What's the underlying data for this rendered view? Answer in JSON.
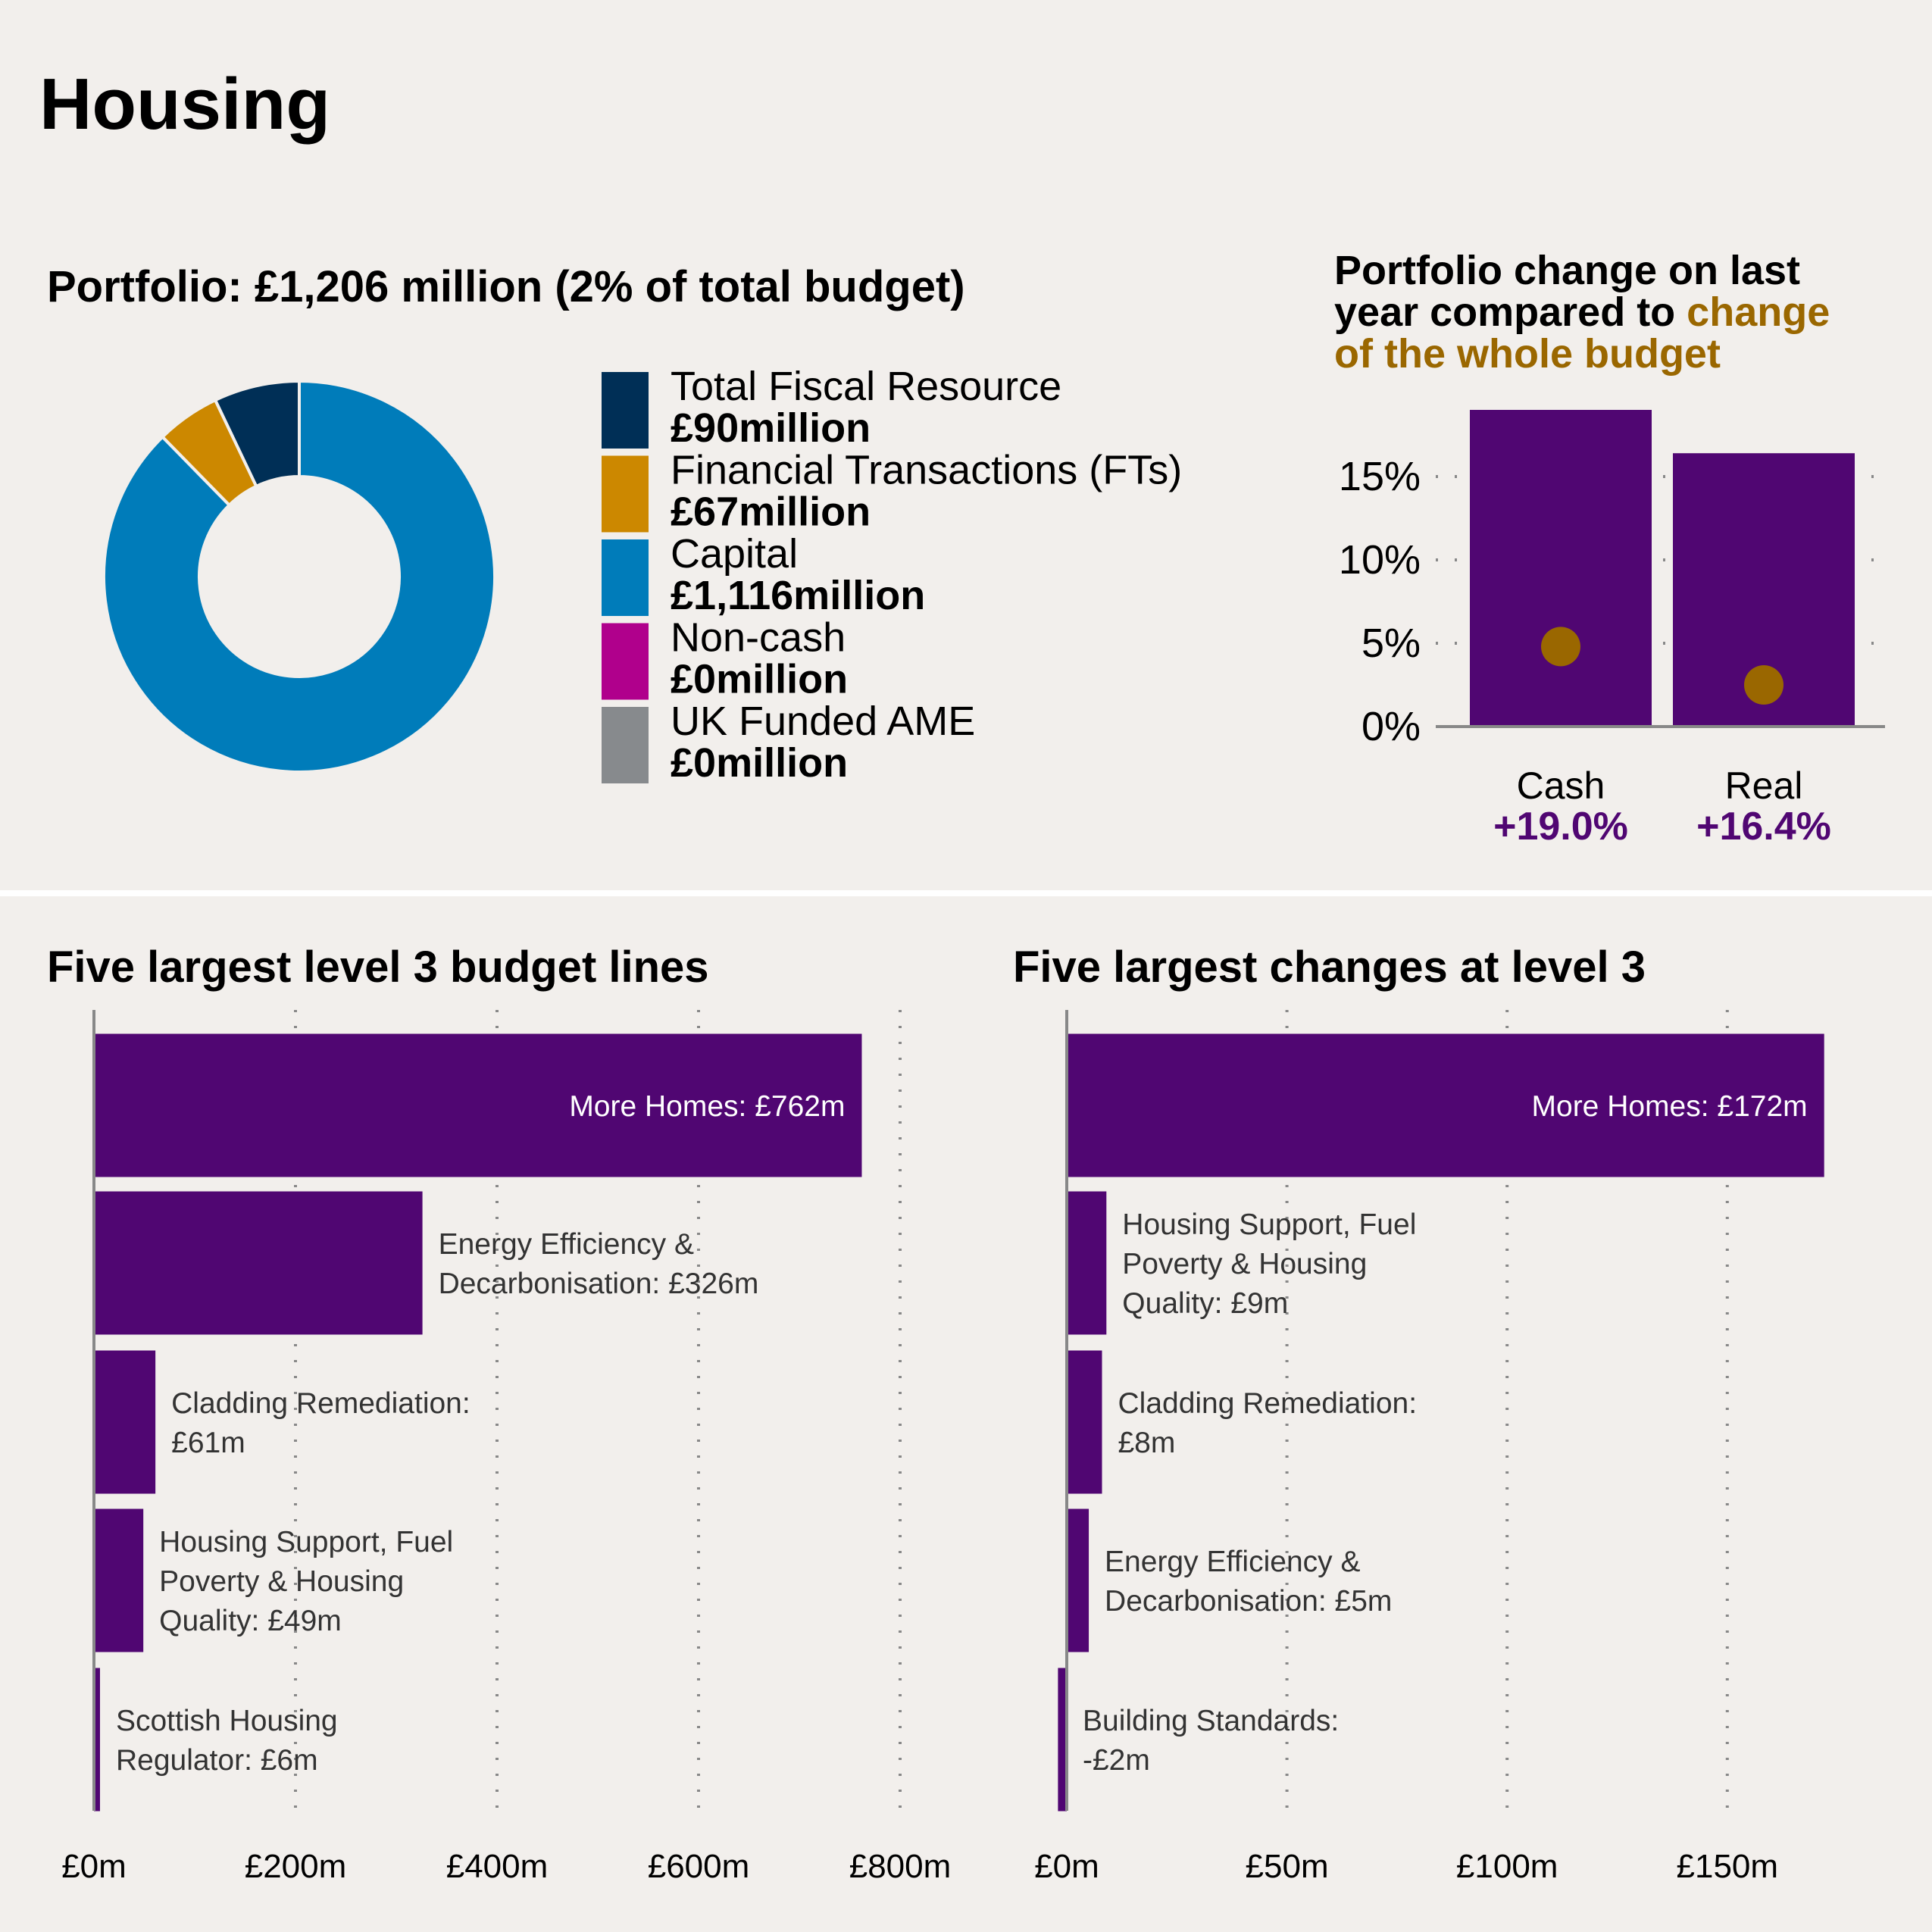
{
  "page_title": "Housing",
  "colors": {
    "background": "#f2efec",
    "purple": "#500672",
    "gold": "#9a6700",
    "navy": "#002f56",
    "amber": "#cc8800",
    "blue": "#007cba",
    "magenta": "#b0008c",
    "grey": "#878a8d"
  },
  "chart_data": [
    {
      "type": "pie",
      "title": "Portfolio: £1,206 million (2% of total budget)",
      "donut": true,
      "slices": [
        {
          "name": "Total Fiscal Resource",
          "value": 90,
          "label": "£90million",
          "color": "#002f56"
        },
        {
          "name": "Financial Transactions (FTs)",
          "value": 67,
          "label": "£67million",
          "color": "#cc8800"
        },
        {
          "name": "Capital",
          "value": 1116,
          "label": "£1,116million",
          "color": "#007cba"
        },
        {
          "name": "Non-cash",
          "value": 0,
          "label": "£0million",
          "color": "#b0008c"
        },
        {
          "name": "UK Funded AME",
          "value": 0,
          "label": "£0million",
          "color": "#878a8d"
        }
      ],
      "legend_position": "right"
    },
    {
      "type": "bar",
      "title_parts": [
        "Portfolio change on last",
        "year compared to ",
        "change",
        "of the whole budget"
      ],
      "categories": [
        "Cash",
        "Real"
      ],
      "values": [
        19.0,
        16.4
      ],
      "value_labels": [
        "+19.0%",
        "+16.4%"
      ],
      "whole_budget_points": [
        4.8,
        2.5
      ],
      "yticks": [
        "0%",
        "5%",
        "10%",
        "15%"
      ],
      "ytick_values": [
        0,
        5,
        10,
        15
      ],
      "ylim": [
        0,
        19
      ],
      "grid": "dotted horizontal"
    },
    {
      "type": "bar",
      "orientation": "horizontal",
      "title": "Five largest level 3 budget lines",
      "values": [
        762,
        326,
        61,
        49,
        6
      ],
      "labels": [
        [
          "More Homes: £762m"
        ],
        [
          "Energy Efficiency &",
          "Decarbonisation: £326m"
        ],
        [
          "Cladding Remediation:",
          "£61m"
        ],
        [
          "Housing Support, Fuel",
          "Poverty & Housing",
          "Quality: £49m"
        ],
        [
          "Scottish Housing",
          "Regulator: £6m"
        ]
      ],
      "xticks": [
        "£0m",
        "£200m",
        "£400m",
        "£600m",
        "£800m"
      ],
      "xtick_values": [
        0,
        200,
        400,
        600,
        800
      ],
      "xlim": [
        0,
        800
      ],
      "grid": "dotted vertical"
    },
    {
      "type": "bar",
      "orientation": "horizontal",
      "title": "Five largest changes at level 3",
      "values": [
        172,
        9,
        8,
        5,
        -2
      ],
      "labels": [
        [
          "More Homes: £172m"
        ],
        [
          "Housing Support, Fuel",
          "Poverty & Housing",
          "Quality: £9m"
        ],
        [
          "Cladding Remediation:",
          "£8m"
        ],
        [
          "Energy Efficiency &",
          "Decarbonisation: £5m"
        ],
        [
          "Building Standards:",
          "-£2m"
        ]
      ],
      "xticks": [
        "£0m",
        "£50m",
        "£100m",
        "£150m"
      ],
      "xtick_values": [
        0,
        50,
        100,
        150
      ],
      "xlim": [
        0,
        172
      ],
      "grid": "dotted vertical"
    }
  ]
}
